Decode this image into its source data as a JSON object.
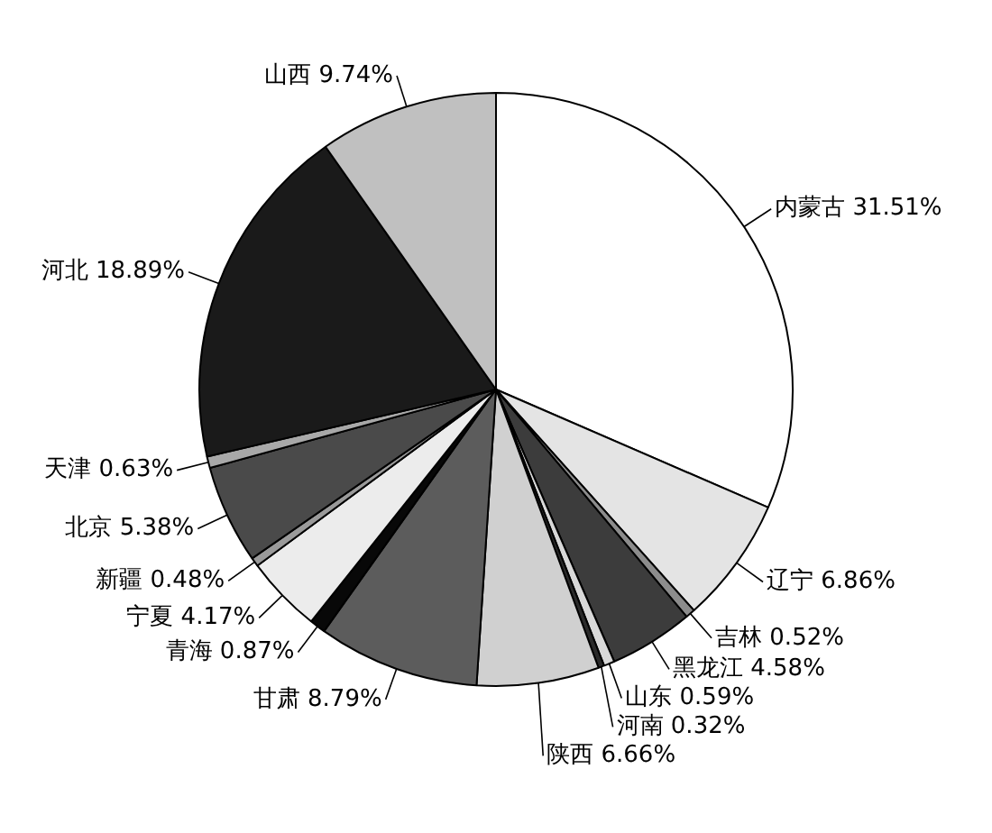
{
  "chart_data": {
    "type": "pie",
    "categories": [
      "内蒙古",
      "辽宁",
      "吉林",
      "黑龙江",
      "山东",
      "河南",
      "陕西",
      "甘肃",
      "青海",
      "宁夏",
      "新疆",
      "北京",
      "天津",
      "河北",
      "山西"
    ],
    "values": [
      31.51,
      6.86,
      0.52,
      4.58,
      0.59,
      0.32,
      6.66,
      8.79,
      0.87,
      4.17,
      0.48,
      5.38,
      0.63,
      18.89,
      9.74
    ],
    "value_labels": [
      "31.51%",
      "6.86%",
      "0.52%",
      "4.58%",
      "0.59%",
      "0.32%",
      "6.66%",
      "8.79%",
      "0.87%",
      "4.17%",
      "0.48%",
      "5.38%",
      "0.63%",
      "18.89%",
      "9.74%"
    ],
    "colors": [
      "#ffffff",
      "#e4e4e4",
      "#8c8c8c",
      "#3c3c3c",
      "#d8d8d8",
      "#2a2a2a",
      "#d0d0d0",
      "#5c5c5c",
      "#080808",
      "#ececec",
      "#9a9a9a",
      "#4a4a4a",
      "#a8a8a8",
      "#1a1a1a",
      "#c0c0c0"
    ],
    "legend": false
  }
}
